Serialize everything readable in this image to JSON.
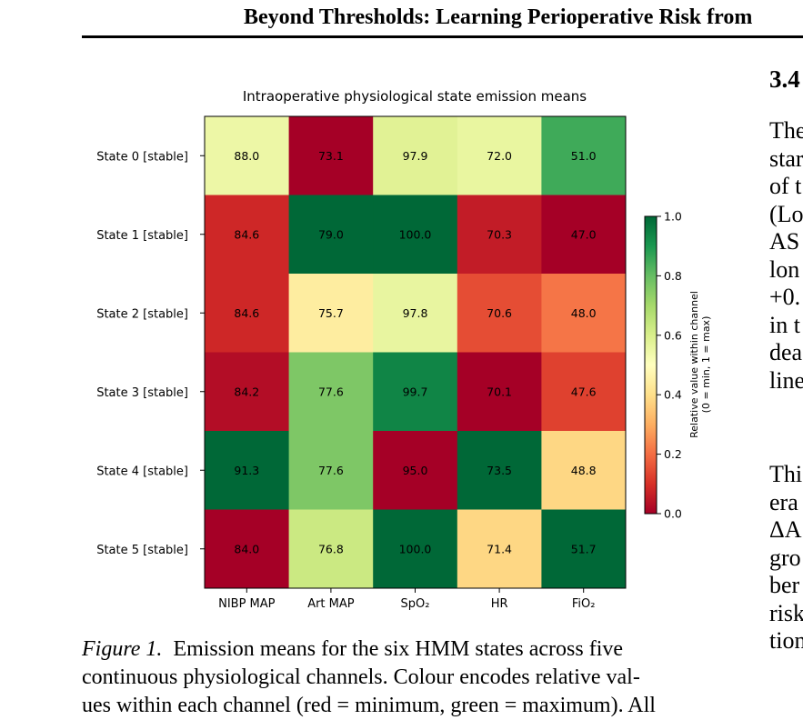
{
  "header": {
    "title": "Beyond Thresholds: Learning Perioperative Risk from"
  },
  "right_column": {
    "section_number": "3.4",
    "paragraph1_lines": [
      "The",
      "star",
      "of t",
      "(Lo",
      "AS",
      "lon",
      "+0.",
      "in t",
      "dea",
      "line"
    ],
    "paragraph2_lines": [
      "Thi",
      "era",
      "ΔA",
      "gro",
      "ber",
      "risk",
      "tion"
    ]
  },
  "caption": {
    "label": "Figure 1.",
    "lines": [
      "Emission means for the six HMM states across five",
      "continuous physiological channels. Colour encodes relative val-",
      "ues within each channel (red = minimum, green = maximum). All"
    ]
  },
  "chart_data": {
    "type": "heatmap",
    "title": "Intraoperative physiological state emission means",
    "rows": [
      "State 0  [stable]",
      "State 1  [stable]",
      "State 2  [stable]",
      "State 3  [stable]",
      "State 4  [stable]",
      "State 5  [stable]"
    ],
    "columns": [
      "NIBP MAP",
      "Art MAP",
      "SpO₂",
      "HR",
      "FiO₂"
    ],
    "values": [
      [
        88.0,
        73.1,
        97.9,
        72.0,
        51.0
      ],
      [
        84.6,
        79.0,
        100.0,
        70.3,
        47.0
      ],
      [
        84.6,
        75.7,
        97.8,
        70.6,
        48.0
      ],
      [
        84.2,
        77.6,
        99.7,
        70.1,
        47.6
      ],
      [
        91.3,
        77.6,
        95.0,
        73.5,
        48.8
      ],
      [
        84.0,
        76.8,
        100.0,
        71.4,
        51.7
      ]
    ],
    "value_labels": [
      [
        "88.0",
        "73.1",
        "97.9",
        "72.0",
        "51.0"
      ],
      [
        "84.6",
        "79.0",
        "100.0",
        "70.3",
        "47.0"
      ],
      [
        "84.6",
        "75.7",
        "97.8",
        "70.6",
        "48.0"
      ],
      [
        "84.2",
        "77.6",
        "99.7",
        "70.1",
        "47.6"
      ],
      [
        "91.3",
        "77.6",
        "95.0",
        "73.5",
        "48.8"
      ],
      [
        "84.0",
        "76.8",
        "100.0",
        "71.4",
        "51.7"
      ]
    ],
    "colorbar": {
      "label_line1": "Relative value within channel",
      "label_line2": "(0 = min, 1 = max)",
      "range": [
        0,
        1
      ],
      "ticks": [
        0.0,
        0.2,
        0.4,
        0.6,
        0.8,
        1.0
      ],
      "tick_labels": [
        "0.0",
        "0.2",
        "0.4",
        "0.6",
        "0.8",
        "1.0"
      ],
      "colormap": "RdYlGn",
      "colors": [
        "#a50026",
        "#d73027",
        "#f46d43",
        "#fdae61",
        "#fee08b",
        "#ffffbf",
        "#d9ef8b",
        "#a6d96a",
        "#66bd63",
        "#1a9850",
        "#006837"
      ]
    },
    "normalization": "per-column min-max"
  }
}
